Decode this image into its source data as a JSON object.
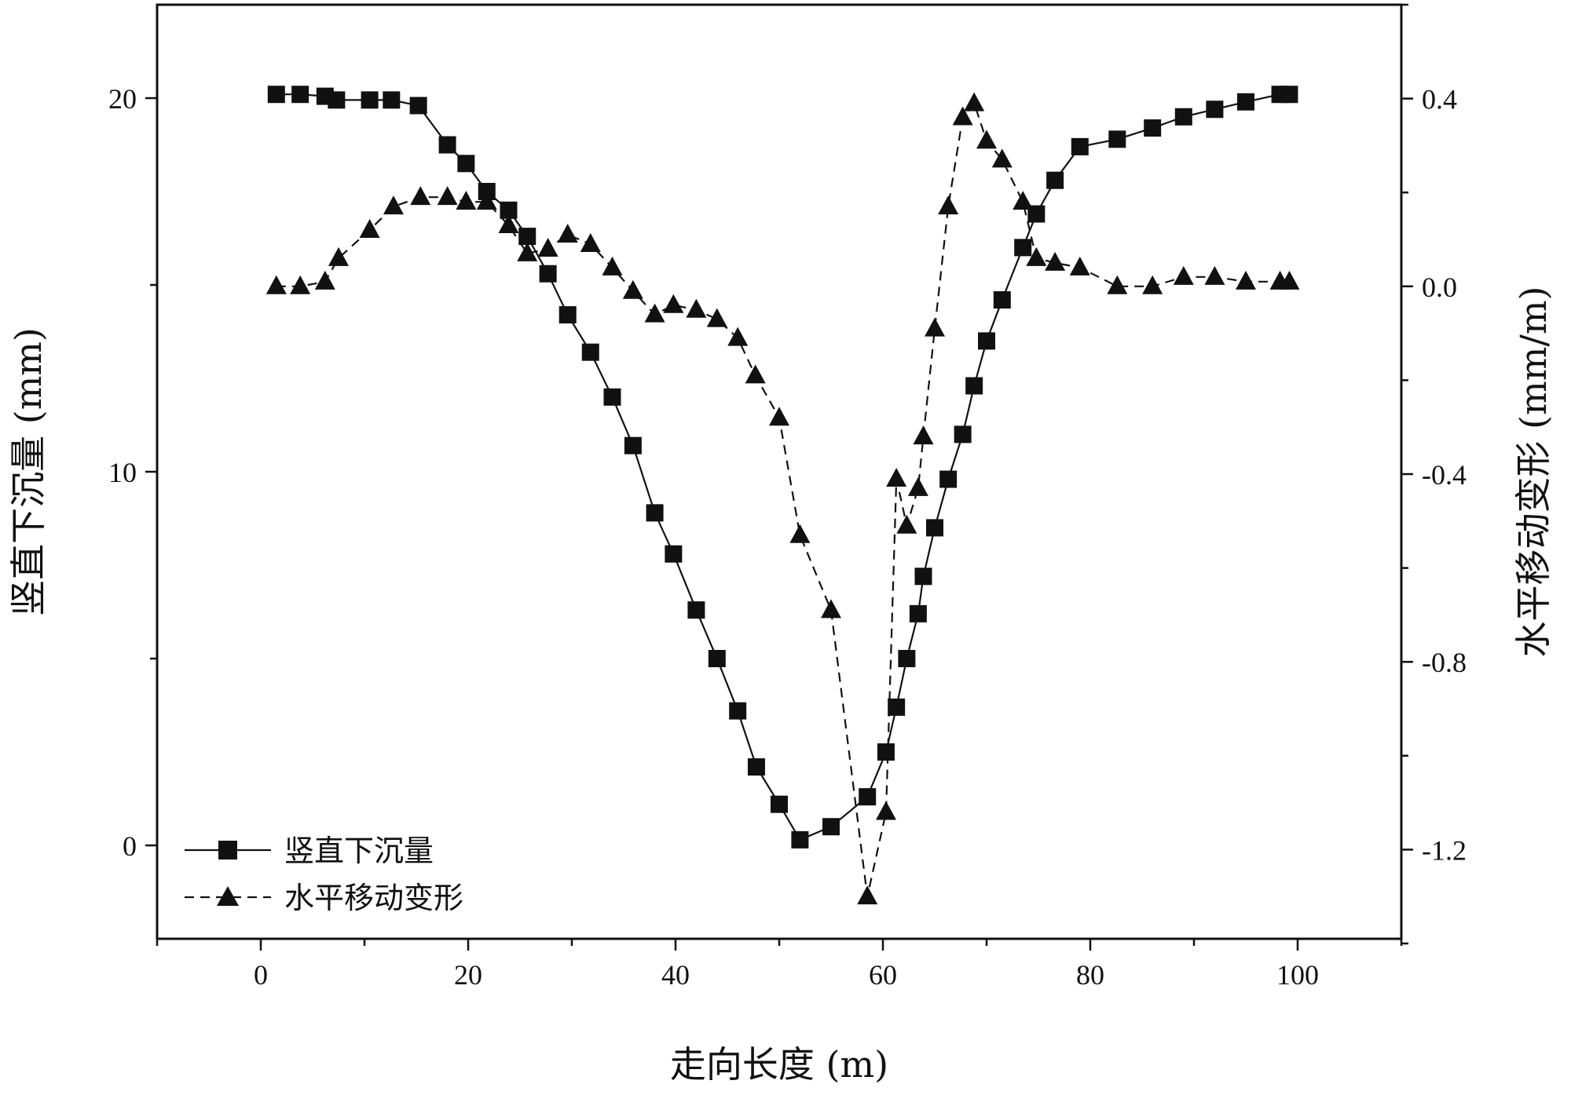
{
  "chart_data": {
    "type": "line",
    "xlabel": "走向长度 (m)",
    "ylabel_left": "竖直下沉量 (mm)",
    "ylabel_right": "水平移动变形 (mm/m)",
    "xlim": [
      -10,
      110
    ],
    "ylim_left": [
      -2.5,
      22.5
    ],
    "ylim_right": [
      -1.39,
      0.6
    ],
    "x_ticks": [
      0,
      20,
      40,
      60,
      80,
      100
    ],
    "y_left_ticks": [
      0,
      10,
      20
    ],
    "y_right_ticks": [
      "0.4",
      "0.0",
      "-0.4",
      "-0.8",
      "-1.2"
    ],
    "grid": false,
    "legend_position": "bottom-left",
    "series": [
      {
        "name": "竖直下沉量",
        "axis": "left",
        "line_style": "solid",
        "marker": "square",
        "x": [
          1.5,
          3.8,
          6.2,
          7.3,
          10.5,
          12.6,
          15.2,
          18.0,
          19.8,
          21.8,
          23.9,
          25.7,
          27.7,
          29.6,
          31.8,
          33.9,
          35.9,
          38.0,
          39.8,
          42.0,
          44.0,
          46.0,
          47.8,
          50.0,
          52.0,
          55.0,
          58.5,
          60.3,
          61.3,
          62.3,
          63.4,
          63.9,
          65.0,
          66.3,
          67.7,
          68.8,
          70.0,
          71.5,
          73.5,
          74.8,
          76.6,
          79.0,
          82.6,
          86.0,
          89.0,
          92.0,
          95.0,
          98.3,
          99.2
        ],
        "y": [
          20.1,
          20.1,
          20.05,
          19.95,
          19.95,
          19.95,
          19.8,
          18.75,
          18.25,
          17.5,
          17.0,
          16.3,
          15.3,
          14.2,
          13.2,
          12.0,
          10.7,
          8.9,
          7.8,
          6.3,
          5.0,
          3.6,
          2.1,
          1.1,
          0.15,
          0.5,
          1.3,
          2.5,
          3.7,
          5.0,
          6.2,
          7.2,
          8.5,
          9.8,
          11.0,
          12.3,
          13.5,
          14.6,
          16.0,
          16.9,
          17.8,
          18.7,
          18.9,
          19.2,
          19.5,
          19.7,
          19.9,
          20.1,
          20.1
        ]
      },
      {
        "name": "水平移动变形",
        "axis": "right",
        "line_style": "dashed",
        "marker": "triangle",
        "x": [
          1.5,
          3.8,
          6.2,
          7.5,
          10.5,
          12.8,
          15.4,
          18.0,
          19.8,
          21.8,
          23.9,
          25.7,
          27.7,
          29.6,
          31.8,
          33.9,
          35.9,
          38.0,
          39.8,
          42.0,
          44.0,
          46.0,
          47.7,
          50.0,
          52.0,
          55.0,
          58.5,
          60.3,
          61.3,
          62.3,
          63.4,
          63.9,
          65.0,
          66.3,
          67.7,
          68.8,
          70.0,
          71.5,
          73.5,
          74.8,
          76.6,
          79.0,
          82.6,
          86.0,
          89.0,
          92.0,
          95.0,
          98.3,
          99.2
        ],
        "y": [
          0.0,
          0.0,
          0.01,
          0.06,
          0.12,
          0.17,
          0.19,
          0.19,
          0.18,
          0.18,
          0.13,
          0.07,
          0.08,
          0.11,
          0.09,
          0.04,
          -0.01,
          -0.06,
          -0.04,
          -0.05,
          -0.07,
          -0.11,
          -0.19,
          -0.28,
          -0.53,
          -0.69,
          -1.3,
          -1.12,
          -0.41,
          -0.51,
          -0.43,
          -0.32,
          -0.09,
          0.17,
          0.36,
          0.39,
          0.31,
          0.27,
          0.18,
          0.06,
          0.05,
          0.04,
          0.0,
          0.0,
          0.02,
          0.02,
          0.01,
          0.01,
          0.01
        ]
      }
    ]
  }
}
